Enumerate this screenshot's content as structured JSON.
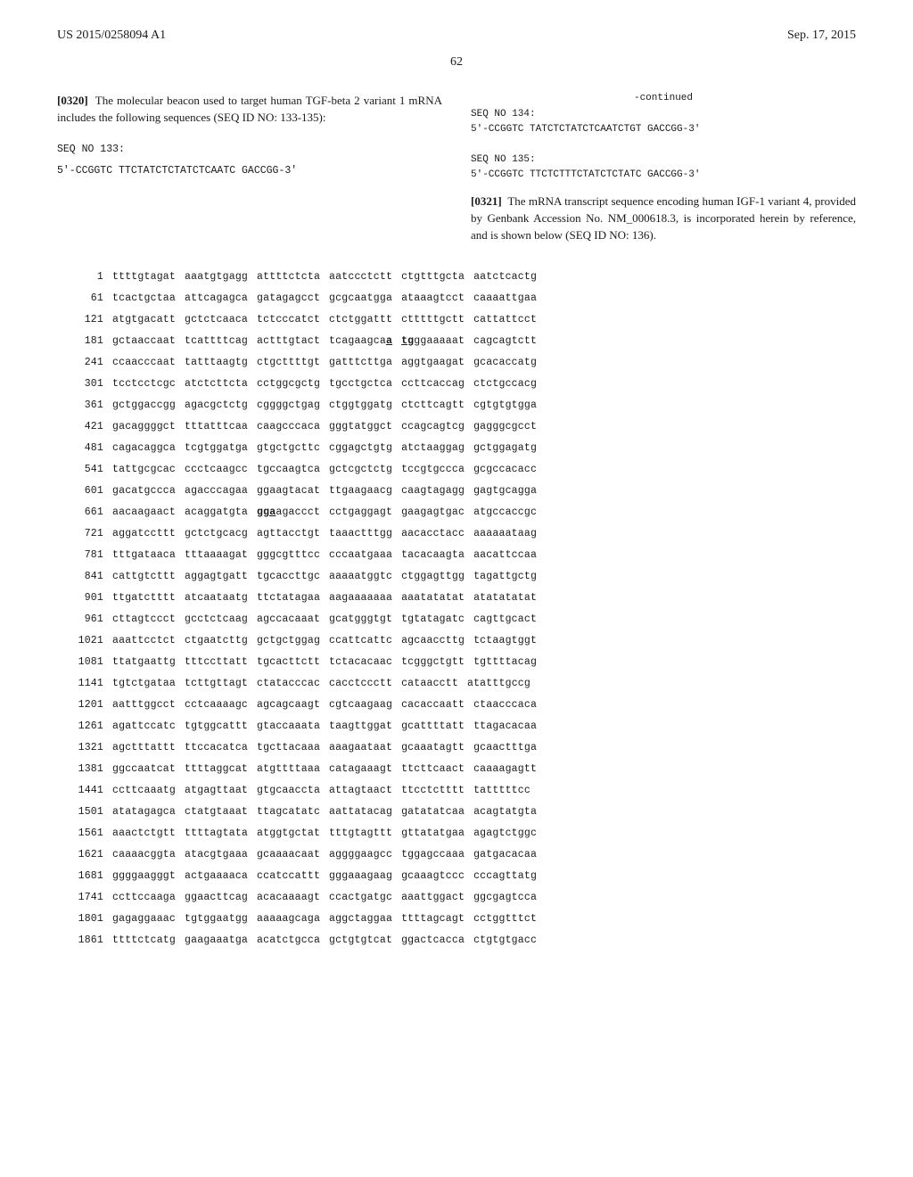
{
  "header": {
    "left": "US 2015/0258094 A1",
    "right": "Sep. 17, 2015",
    "pagenum": "62"
  },
  "left_col": {
    "para0320_ref": "[0320]",
    "para0320_text": "The molecular beacon used to target human TGF-beta 2 variant 1 mRNA includes the following sequences (SEQ ID NO: 133-135):",
    "seq133_label": "SEQ NO 133:",
    "seq133": "5'-CCGGTC TTCTATCTCTATCTCAATC GACCGG-3'"
  },
  "right_col": {
    "continued": "-continued",
    "seq134_label": "SEQ NO 134:",
    "seq134": "5'-CCGGTC TATCTCTATCTCAATCTGT GACCGG-3'",
    "seq135_label": "SEQ NO 135:",
    "seq135": "5'-CCGGTC TTCTCTTTCTATCTCTATC GACCGG-3'",
    "para0321_ref": "[0321]",
    "para0321_text": "The mRNA transcript sequence encoding human IGF-1 variant 4, provided by Genbank Accession No. NM_000618.3, is incorporated herein by reference, and is shown below (SEQ ID NO: 136)."
  },
  "seq136": [
    {
      "n": "1",
      "g": [
        "ttttgtagat",
        "aaatgtgagg",
        "attttctcta",
        "aatccctctt",
        "ctgtttgcta",
        "aatctcactg"
      ]
    },
    {
      "n": "61",
      "g": [
        "tcactgctaa",
        "attcagagca",
        "gatagagcct",
        "gcgcaatgga",
        "ataaagtcct",
        "caaaattgaa"
      ]
    },
    {
      "n": "121",
      "g": [
        "atgtgacatt",
        "gctctcaaca",
        "tctcccatct",
        "ctctggattt",
        "ctttttgctt",
        "cattattcct"
      ]
    },
    {
      "n": "181",
      "g": [
        "gctaaccaat",
        "tcattttcag",
        "actttgtact",
        "tcagaagca<bu>a</bu>",
        "<bu>tg</bu>ggaaaaat",
        "cagcagtctt"
      ]
    },
    {
      "n": "241",
      "g": [
        "ccaacccaat",
        "tatttaagtg",
        "ctgcttttgt",
        "gatttcttga",
        "aggtgaagat",
        "gcacaccatg"
      ]
    },
    {
      "n": "301",
      "g": [
        "tcctcctcgc",
        "atctcttcta",
        "cctggcgctg",
        "tgcctgctca",
        "ccttcaccag",
        "ctctgccacg"
      ]
    },
    {
      "n": "361",
      "g": [
        "gctggaccgg",
        "agacgctctg",
        "cggggctgag",
        "ctggtggatg",
        "ctcttcagtt",
        "cgtgtgtgga"
      ]
    },
    {
      "n": "421",
      "g": [
        "gacaggggct",
        "tttatttcaa",
        "caagcccaca",
        "gggtatggct",
        "ccagcagtcg",
        "gagggcgcct"
      ]
    },
    {
      "n": "481",
      "g": [
        "cagacaggca",
        "tcgtggatga",
        "gtgctgcttc",
        "cggagctgtg",
        "atctaaggag",
        "gctggagatg"
      ]
    },
    {
      "n": "541",
      "g": [
        "tattgcgcac",
        "ccctcaagcc",
        "tgccaagtca",
        "gctcgctctg",
        "tccgtgccca",
        "gcgccacacc"
      ]
    },
    {
      "n": "601",
      "g": [
        "gacatgccca",
        "agacccagaa",
        "ggaagtacat",
        "ttgaagaacg",
        "caagtagagg",
        "gagtgcagga"
      ]
    },
    {
      "n": "661",
      "g": [
        "aacaagaact",
        "acaggatgta",
        "<bu>gga</bu>agaccct",
        "cctgaggagt",
        "gaagagtgac",
        "atgccaccgc"
      ]
    },
    {
      "n": "721",
      "g": [
        "aggatccttt",
        "gctctgcacg",
        "agttacctgt",
        "taaactttgg",
        "aacacctacc",
        "aaaaaataag"
      ]
    },
    {
      "n": "781",
      "g": [
        "tttgataaca",
        "tttaaaagat",
        "gggcgtttcc",
        "cccaatgaaa",
        "tacacaagta",
        "aacattccaa"
      ]
    },
    {
      "n": "841",
      "g": [
        "cattgtcttt",
        "aggagtgatt",
        "tgcaccttgc",
        "aaaaatggtc",
        "ctggagttgg",
        "tagattgctg"
      ]
    },
    {
      "n": "901",
      "g": [
        "ttgatctttt",
        "atcaataatg",
        "ttctatagaa",
        "aagaaaaaaa",
        "aaatatatat",
        "atatatatat"
      ]
    },
    {
      "n": "961",
      "g": [
        "cttagtccct",
        "gcctctcaag",
        "agccacaaat",
        "gcatgggtgt",
        "tgtatagatc",
        "cagttgcact"
      ]
    },
    {
      "n": "1021",
      "g": [
        "aaattcctct",
        "ctgaatcttg",
        "gctgctggag",
        "ccattcattc",
        "agcaaccttg",
        "tctaagtggt"
      ]
    },
    {
      "n": "1081",
      "g": [
        "ttatgaattg",
        "tttccttatt",
        "tgcacttctt",
        "tctacacaac",
        "tcgggctgtt",
        "tgttttacag"
      ]
    },
    {
      "n": "1141",
      "g": [
        "tgtctgataa",
        "tcttgttagt",
        "ctatacccac",
        "cacctccctt",
        "cataacctt",
        "atatttgccg"
      ]
    },
    {
      "n": "1201",
      "g": [
        "aatttggcct",
        "cctcaaaagc",
        "agcagcaagt",
        "cgtcaagaag",
        "cacaccaatt",
        "ctaacccaca"
      ]
    },
    {
      "n": "1261",
      "g": [
        "agattccatc",
        "tgtggcattt",
        "gtaccaaata",
        "taagttggat",
        "gcattttatt",
        "ttagacacaa"
      ]
    },
    {
      "n": "1321",
      "g": [
        "agctttattt",
        "ttccacatca",
        "tgcttacaaa",
        "aaagaataat",
        "gcaaatagtt",
        "gcaactttga"
      ]
    },
    {
      "n": "1381",
      "g": [
        "ggccaatcat",
        "ttttaggcat",
        "atgttttaaa",
        "catagaaagt",
        "ttcttcaact",
        "caaaagagtt"
      ]
    },
    {
      "n": "1441",
      "g": [
        "ccttcaaatg",
        "atgagttaat",
        "gtgcaaccta",
        "attagtaact",
        "ttcctctttt",
        "tatttttcc"
      ]
    },
    {
      "n": "1501",
      "g": [
        "atatagagca",
        "ctatgtaaat",
        "ttagcatatc",
        "aattatacag",
        "gatatatcaa",
        "acagtatgta"
      ]
    },
    {
      "n": "1561",
      "g": [
        "aaactctgtt",
        "ttttagtata",
        "atggtgctat",
        "tttgtagttt",
        "gttatatgaa",
        "agagtctggc"
      ]
    },
    {
      "n": "1621",
      "g": [
        "caaaacggta",
        "atacgtgaaa",
        "gcaaaacaat",
        "aggggaagcc",
        "tggagccaaa",
        "gatgacacaa"
      ]
    },
    {
      "n": "1681",
      "g": [
        "ggggaagggt",
        "actgaaaaca",
        "ccatccattt",
        "gggaaagaag",
        "gcaaagtccc",
        "cccagttatg"
      ]
    },
    {
      "n": "1741",
      "g": [
        "ccttccaaga",
        "ggaacttcag",
        "acacaaaagt",
        "ccactgatgc",
        "aaattggact",
        "ggcgagtcca"
      ]
    },
    {
      "n": "1801",
      "g": [
        "gagaggaaac",
        "tgtggaatgg",
        "aaaaagcaga",
        "aggctaggaa",
        "ttttagcagt",
        "cctggtttct"
      ]
    },
    {
      "n": "1861",
      "g": [
        "ttttctcatg",
        "gaagaaatga",
        "acatctgcca",
        "gctgtgtcat",
        "ggactcacca",
        "ctgtgtgacc"
      ]
    }
  ]
}
